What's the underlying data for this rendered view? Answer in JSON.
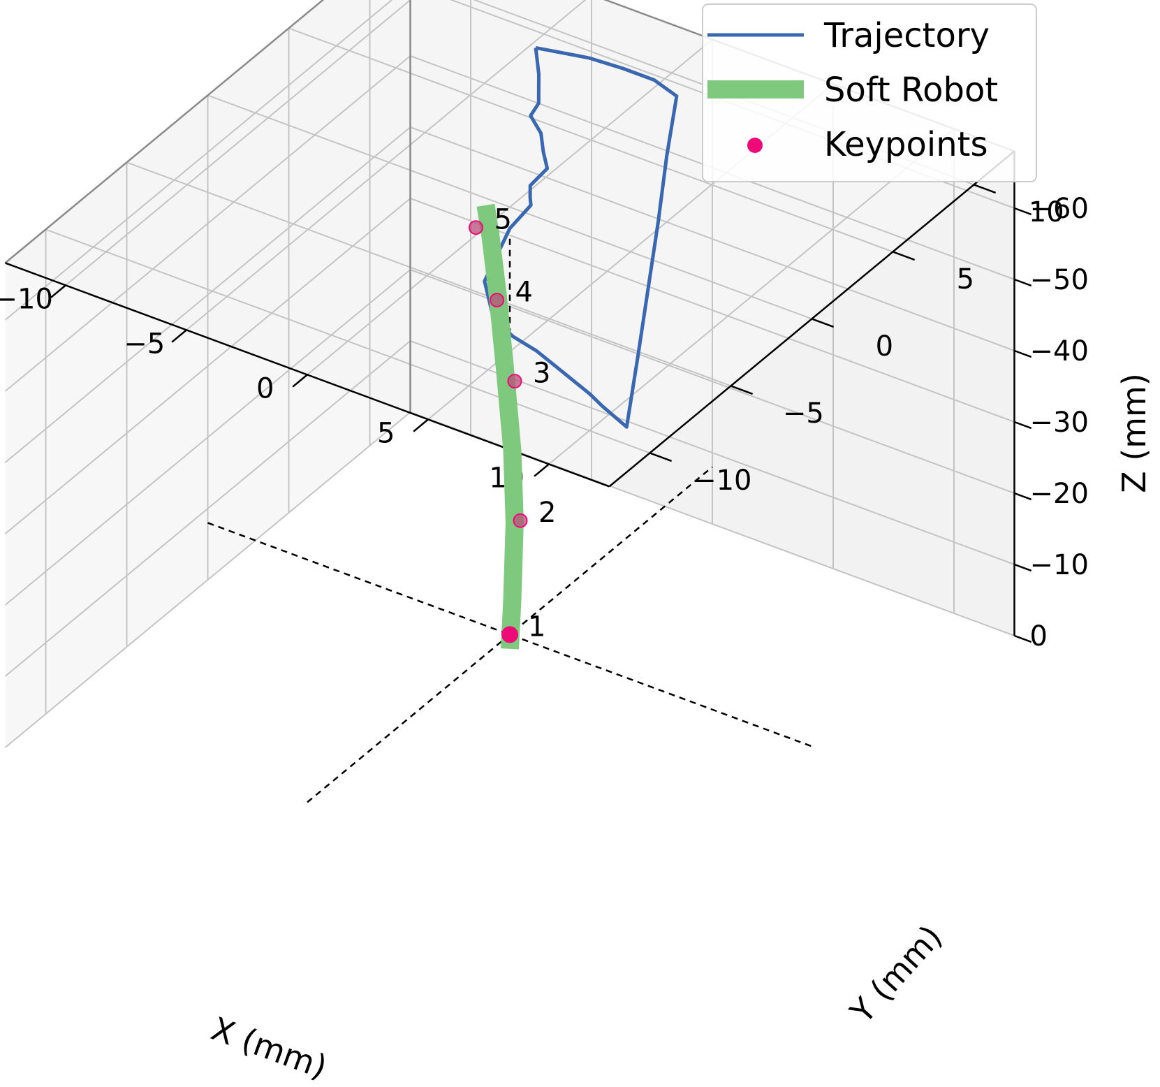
{
  "chart_data": {
    "type": "line",
    "projection": "3d",
    "grid": true,
    "legend_position": "top-right",
    "axes": {
      "x": {
        "label": "X (mm)",
        "ticks": [
          "−10",
          "−5",
          "0",
          "5",
          "10"
        ],
        "tick_values": [
          -10,
          -5,
          0,
          5,
          10
        ],
        "lim": [
          -12.5,
          12.5
        ]
      },
      "y": {
        "label": "Y (mm)",
        "ticks": [
          "−10",
          "−5",
          "0",
          "5",
          "10"
        ],
        "tick_values": [
          -10,
          -5,
          0,
          5,
          10
        ],
        "lim": [
          -12.5,
          12.5
        ]
      },
      "z": {
        "label": "Z (mm)",
        "ticks": [
          "0",
          "−10",
          "−20",
          "−30",
          "−40",
          "−50",
          "−60"
        ],
        "tick_values": [
          0,
          -10,
          -20,
          -30,
          -40,
          -50,
          -60
        ],
        "lim": [
          -68,
          0
        ],
        "inverted": true
      }
    },
    "legend": [
      {
        "label": "Trajectory",
        "color": "#3a68b0",
        "marker": "line"
      },
      {
        "label": "Soft Robot",
        "color": "#7fc97f",
        "marker": "thick-line"
      },
      {
        "label": "Keypoints",
        "color": "#ee0a78",
        "marker": "dot"
      }
    ],
    "series": [
      {
        "name": "Trajectory",
        "color": "#3a68b0",
        "points": [
          {
            "x": -5.5,
            "y": 9.8,
            "z": -65
          },
          {
            "x": -4.5,
            "y": 8.5,
            "z": -65
          },
          {
            "x": -3.5,
            "y": 7.0,
            "z": -65
          },
          {
            "x": -3.3,
            "y": 6.2,
            "z": -65
          },
          {
            "x": -2.4,
            "y": 5.5,
            "z": -65
          },
          {
            "x": -1.7,
            "y": 4.6,
            "z": -65
          },
          {
            "x": -1.0,
            "y": 3.8,
            "z": -65
          },
          {
            "x": -0.9,
            "y": 2.6,
            "z": -65
          },
          {
            "x": -0.5,
            "y": 2.0,
            "z": -65
          },
          {
            "x": -0.2,
            "y": 1.6,
            "z": -65
          },
          {
            "x": 0.0,
            "y": 0.0,
            "z": -65
          },
          {
            "x": 1.1,
            "y": -3.2,
            "z": -65
          },
          {
            "x": 2.6,
            "y": -4.9,
            "z": -65
          },
          {
            "x": 3.8,
            "y": -5.5,
            "z": -65
          },
          {
            "x": 5.0,
            "y": -5.8,
            "z": -65
          },
          {
            "x": 6.0,
            "y": -6.2,
            "z": -65
          },
          {
            "x": 7.0,
            "y": -6.6,
            "z": -65
          },
          {
            "x": 8.0,
            "y": -7.0,
            "z": -65
          },
          {
            "x": 8.8,
            "y": -7.4,
            "z": -65
          },
          {
            "x": 10.2,
            "y": -8.0,
            "z": -65
          },
          {
            "x": 8.0,
            "y": -4.0,
            "z": -65
          },
          {
            "x": 6.0,
            "y": -0.4,
            "z": -65
          },
          {
            "x": 4.0,
            "y": 3.2,
            "z": -65
          },
          {
            "x": 2.0,
            "y": 6.7,
            "z": -65
          },
          {
            "x": 0.2,
            "y": 10.0,
            "z": -65
          },
          {
            "x": -1.0,
            "y": 10.4,
            "z": -65
          },
          {
            "x": -2.3,
            "y": 10.4,
            "z": -65
          },
          {
            "x": -3.6,
            "y": 10.3,
            "z": -65
          },
          {
            "x": -4.0,
            "y": 10.2,
            "z": -65
          },
          {
            "x": -5.5,
            "y": 9.8,
            "z": -65
          }
        ]
      },
      {
        "name": "Soft Robot",
        "color": "#7fc97f",
        "points": [
          {
            "x": 0.0,
            "y": 0.0,
            "z": -6
          },
          {
            "x": 0.1,
            "y": 0.0,
            "z": -13
          },
          {
            "x": 0.2,
            "y": 0.0,
            "z": -24
          },
          {
            "x": 0.1,
            "y": 0.0,
            "z": -34
          },
          {
            "x": -0.2,
            "y": 0.0,
            "z": -45
          },
          {
            "x": -0.5,
            "y": 0.0,
            "z": -55
          },
          {
            "x": -0.8,
            "y": 0.0,
            "z": -63
          },
          {
            "x": -1.0,
            "y": 0.0,
            "z": -67
          }
        ]
      },
      {
        "name": "Keypoints",
        "color": "#ee0a78",
        "points": [
          {
            "label": "1",
            "x": 0.0,
            "y": 0.0,
            "z": -8
          },
          {
            "label": "2",
            "x": 0.3,
            "y": 0.2,
            "z": -24
          },
          {
            "label": "3",
            "x": 0.0,
            "y": 0.3,
            "z": -43
          },
          {
            "label": "4",
            "x": -0.6,
            "y": 0.1,
            "z": -54
          },
          {
            "label": "5",
            "x": -1.0,
            "y": -0.6,
            "z": -65
          }
        ]
      }
    ]
  }
}
